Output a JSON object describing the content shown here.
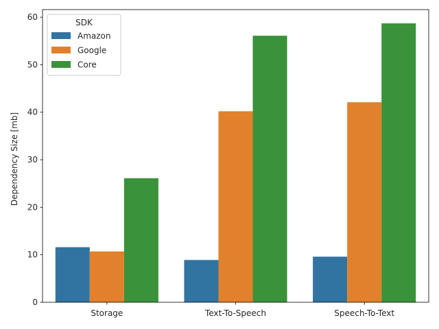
{
  "chart_data": {
    "type": "bar",
    "categories": [
      "Storage",
      "Text-To-Speech",
      "Speech-To-Text"
    ],
    "series": [
      {
        "name": "Amazon",
        "color": "#3274a1",
        "values": [
          11.6,
          8.9,
          9.6
        ]
      },
      {
        "name": "Google",
        "color": "#e1812c",
        "values": [
          10.7,
          40.2,
          42.1
        ]
      },
      {
        "name": "Core",
        "color": "#3a923a",
        "values": [
          26.1,
          56.1,
          58.7
        ]
      }
    ],
    "title": "",
    "xlabel": "",
    "ylabel": "Dependency Size [mb]",
    "ylim": [
      0,
      61.6
    ],
    "yticks": [
      0,
      10,
      20,
      30,
      40,
      50,
      60
    ],
    "grid": false,
    "legend": {
      "title": "SDK",
      "position": "top-left"
    }
  }
}
